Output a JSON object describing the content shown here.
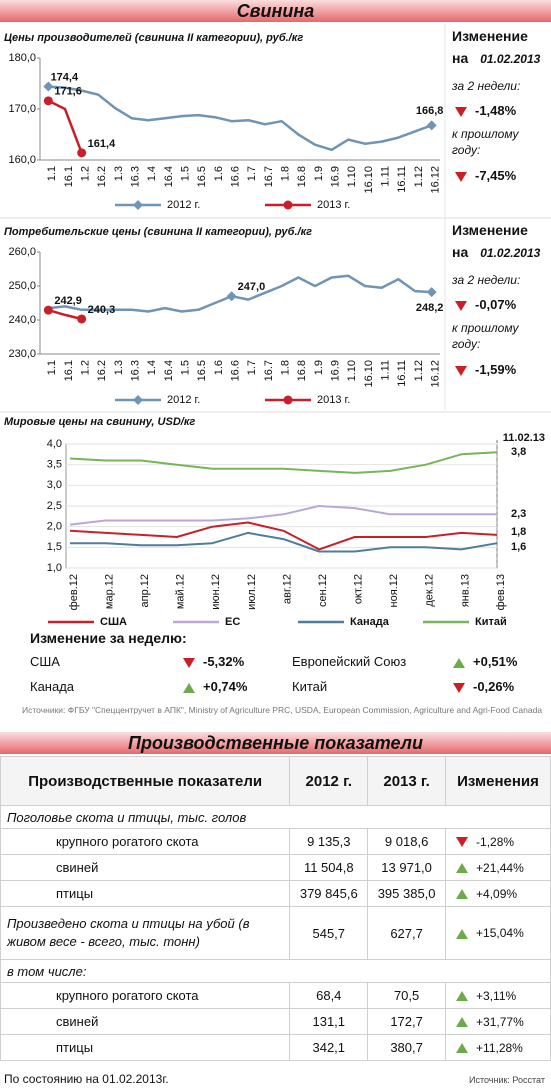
{
  "header": {
    "title": "Свинина"
  },
  "chart_data": [
    {
      "type": "line",
      "title": "Цены производителей (свинина II категории), руб./кг",
      "categories": [
        "1.1",
        "16.1",
        "1.2",
        "16.2",
        "1.3",
        "16.3",
        "1.4",
        "16.4",
        "1.5",
        "16.5",
        "1.6",
        "16.6",
        "1.7",
        "16.7",
        "1.8",
        "16.8",
        "1.9",
        "16.9",
        "1.10",
        "16.10",
        "1.11",
        "16.11",
        "1.12",
        "16.12"
      ],
      "series": [
        {
          "name": "2012 г.",
          "color": "#6f94b5",
          "marker": "diamond",
          "values": [
            174.4,
            174.2,
            173.6,
            172.8,
            170.2,
            168.2,
            167.8,
            168.2,
            168.6,
            168.8,
            168.4,
            167.6,
            167.8,
            167.0,
            167.6,
            165.0,
            163.0,
            162.0,
            164.0,
            163.2,
            163.6,
            164.4,
            165.6,
            166.8
          ],
          "value_labels": [
            "174,4",
            null,
            null,
            null,
            null,
            null,
            null,
            null,
            null,
            null,
            null,
            null,
            null,
            null,
            null,
            null,
            null,
            null,
            null,
            null,
            null,
            null,
            null,
            "166,8"
          ]
        },
        {
          "name": "2013 г.",
          "color": "#c8202a",
          "marker": "circle",
          "values": [
            171.6,
            170.0,
            161.4,
            null,
            null,
            null,
            null,
            null,
            null,
            null,
            null,
            null,
            null,
            null,
            null,
            null,
            null,
            null,
            null,
            null,
            null,
            null,
            null,
            null
          ],
          "value_labels": [
            "171,6",
            null,
            "161,4",
            null,
            null,
            null,
            null,
            null,
            null,
            null,
            null,
            null,
            null,
            null,
            null,
            null,
            null,
            null,
            null,
            null,
            null,
            null,
            null,
            null
          ]
        }
      ],
      "ylim": [
        160,
        180
      ],
      "yticks": [
        {
          "value": 160,
          "label": "160,0"
        },
        {
          "value": 170,
          "label": "170,0"
        },
        {
          "value": 180,
          "label": "180,0"
        }
      ],
      "grid": false,
      "side_panel": {
        "title": "Изменение",
        "date_prefix": "на",
        "date": "01.02.2013",
        "items": [
          {
            "label": "за 2 недели:",
            "value": "-1,48%"
          },
          {
            "label": "к прошлому году:",
            "value": "-7,45%"
          }
        ]
      }
    },
    {
      "type": "line",
      "title": "Потребительские цены (свинина II категории), руб./кг",
      "categories": [
        "1.1",
        "16.1",
        "1.2",
        "16.2",
        "1.3",
        "16.3",
        "1.4",
        "16.4",
        "1.5",
        "16.5",
        "1.6",
        "16.6",
        "1.7",
        "16.7",
        "1.8",
        "16.8",
        "1.9",
        "16.9",
        "1.10",
        "16.10",
        "1.11",
        "16.11",
        "1.12",
        "16.12"
      ],
      "series": [
        {
          "name": "2012 г.",
          "color": "#6f94b5",
          "marker": "diamond",
          "values": [
            243.5,
            244.0,
            243.0,
            243.0,
            243.0,
            243.0,
            242.5,
            243.5,
            242.5,
            243.0,
            245.0,
            247.0,
            246.0,
            248.0,
            250.0,
            252.5,
            250.0,
            252.5,
            253.0,
            250.0,
            249.5,
            252.0,
            248.5,
            248.2
          ],
          "value_labels": [
            null,
            null,
            null,
            null,
            null,
            null,
            null,
            null,
            null,
            null,
            null,
            "247,0",
            null,
            null,
            null,
            null,
            null,
            null,
            null,
            null,
            null,
            null,
            null,
            "248,2"
          ]
        },
        {
          "name": "2013 г.",
          "color": "#c8202a",
          "marker": "circle",
          "values": [
            242.9,
            241.5,
            240.3,
            null,
            null,
            null,
            null,
            null,
            null,
            null,
            null,
            null,
            null,
            null,
            null,
            null,
            null,
            null,
            null,
            null,
            null,
            null,
            null,
            null
          ],
          "value_labels": [
            "242,9",
            null,
            "240,3",
            null,
            null,
            null,
            null,
            null,
            null,
            null,
            null,
            null,
            null,
            null,
            null,
            null,
            null,
            null,
            null,
            null,
            null,
            null,
            null,
            null
          ]
        }
      ],
      "ylim": [
        230,
        260
      ],
      "yticks": [
        {
          "value": 230,
          "label": "230,0"
        },
        {
          "value": 240,
          "label": "240,0"
        },
        {
          "value": 250,
          "label": "250,0"
        },
        {
          "value": 260,
          "label": "260,0"
        }
      ],
      "grid": false,
      "side_panel": {
        "title": "Изменение",
        "date_prefix": "на",
        "date": "01.02.2013",
        "items": [
          {
            "label": "за 2 недели:",
            "value": "-0,07%"
          },
          {
            "label": "к прошлому году:",
            "value": "-1,59%"
          }
        ]
      }
    },
    {
      "type": "line",
      "title": "Мировые цены на свинину, USD/кг",
      "annotation": "11.02.13",
      "categories": [
        "фев.12",
        "мар.12",
        "апр.12",
        "май.12",
        "июн.12",
        "июл.12",
        "авг.12",
        "сен.12",
        "окт.12",
        "ноя.12",
        "дек.12",
        "янв.13",
        "фев.13"
      ],
      "series": [
        {
          "name": "США",
          "color": "#c8202a",
          "values": [
            1.9,
            1.85,
            1.8,
            1.75,
            2.0,
            2.1,
            1.9,
            1.45,
            1.75,
            1.75,
            1.75,
            1.85,
            1.8
          ],
          "value_labels": [
            null,
            null,
            null,
            null,
            null,
            null,
            null,
            null,
            null,
            null,
            null,
            null,
            "1,8"
          ]
        },
        {
          "name": "ЕС",
          "color": "#b9a8d6",
          "values": [
            2.05,
            2.15,
            2.15,
            2.15,
            2.15,
            2.2,
            2.3,
            2.5,
            2.45,
            2.3,
            2.3,
            2.3,
            2.3
          ],
          "value_labels": [
            null,
            null,
            null,
            null,
            null,
            null,
            null,
            null,
            null,
            null,
            null,
            null,
            "2,3"
          ]
        },
        {
          "name": "Канада",
          "color": "#4f7d9c",
          "values": [
            1.6,
            1.6,
            1.55,
            1.55,
            1.6,
            1.85,
            1.7,
            1.4,
            1.4,
            1.5,
            1.5,
            1.45,
            1.6
          ],
          "value_labels": [
            null,
            null,
            null,
            null,
            null,
            null,
            null,
            null,
            null,
            null,
            null,
            null,
            "1,6"
          ]
        },
        {
          "name": "Китай",
          "color": "#77b55a",
          "values": [
            3.65,
            3.6,
            3.6,
            3.5,
            3.4,
            3.4,
            3.4,
            3.35,
            3.3,
            3.35,
            3.5,
            3.75,
            3.8
          ],
          "value_labels": [
            null,
            null,
            null,
            null,
            null,
            null,
            null,
            null,
            null,
            null,
            null,
            null,
            "3,8"
          ]
        }
      ],
      "ylim": [
        1,
        4
      ],
      "yticks": [
        {
          "value": 1,
          "label": "1,0"
        },
        {
          "value": 1.5,
          "label": "1,5"
        },
        {
          "value": 2,
          "label": "2,0"
        },
        {
          "value": 2.5,
          "label": "2,5"
        },
        {
          "value": 3,
          "label": "3,0"
        },
        {
          "value": 3.5,
          "label": "3,5"
        },
        {
          "value": 4,
          "label": "4,0"
        }
      ],
      "grid": true
    }
  ],
  "weekly_change": {
    "title": "Изменение за неделю:",
    "items": [
      {
        "name": "США",
        "value": "-5,32%"
      },
      {
        "name": "Европейский Союз",
        "value": "+0,51%"
      },
      {
        "name": "Канада",
        "value": "+0,74%"
      },
      {
        "name": "Китай",
        "value": "-0,26%"
      }
    ]
  },
  "source": "Источники: ФГБУ \"Спеццентручет в АПК\", Ministry of Agriculture PRC, USDA, European Commission, Agriculture and Agri-Food Canada",
  "production": {
    "title": "Производственные показатели",
    "columns": [
      "Производственные показатели",
      "2012 г.",
      "2013 г.",
      "Изменения"
    ],
    "rows": [
      {
        "heading": "Поголовье скота и птицы, тыс. голов"
      },
      {
        "item": "крупного рогатого скота",
        "cells": [
          "9 135,3",
          "9 018,6",
          "-1,28%"
        ]
      },
      {
        "item": "свиней",
        "cells": [
          "11 504,8",
          "13 971,0",
          "+21,44%"
        ]
      },
      {
        "item": "птицы",
        "cells": [
          "379 845,6",
          "395 385,0",
          "+4,09%"
        ]
      },
      {
        "total": "Произведено скота и птицы на убой (в живом весе - всего, тыс. тонн)",
        "cells": [
          "545,7",
          "627,7",
          "+15,04%"
        ]
      },
      {
        "heading": "в том числе:"
      },
      {
        "item": "крупного рогатого скота",
        "cells": [
          "68,4",
          "70,5",
          "+3,11%"
        ]
      },
      {
        "item": "свиней",
        "cells": [
          "131,1",
          "172,7",
          "+31,77%"
        ]
      },
      {
        "item": "птицы",
        "cells": [
          "342,1",
          "380,7",
          "+11,28%"
        ]
      }
    ],
    "note": "По состоянию на 01.02.2013г.",
    "source": "Источник: Росстат"
  }
}
